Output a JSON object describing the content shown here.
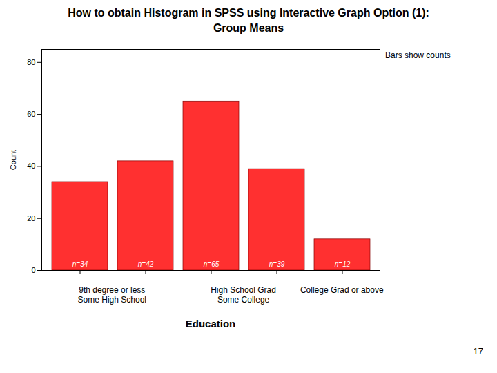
{
  "chart_data": {
    "type": "bar",
    "title": "How to obtain Histogram in SPSS using Interactive Graph Option (1):\nGroup Means",
    "categories": [
      null,
      null,
      null,
      null,
      null
    ],
    "groups": [
      "9th degree or less\nSome High School",
      "9th degree or less\nSome High School",
      "High School Grad\nSome College",
      "High School Grad\nSome College",
      "College Grad or above"
    ],
    "values": [
      34,
      42,
      65,
      39,
      12
    ],
    "value_labels": [
      "n=34",
      "n=42",
      "n=65",
      "n=39",
      "n=12"
    ],
    "data_labels": true,
    "color": "#FF3030",
    "xlabel": "Education",
    "ylabel": "Count",
    "ylim": [
      0,
      85
    ],
    "yticks": [
      0,
      20,
      40,
      60,
      80
    ],
    "grid": false,
    "annotations": [
      "Bars show counts",
      "17"
    ]
  }
}
